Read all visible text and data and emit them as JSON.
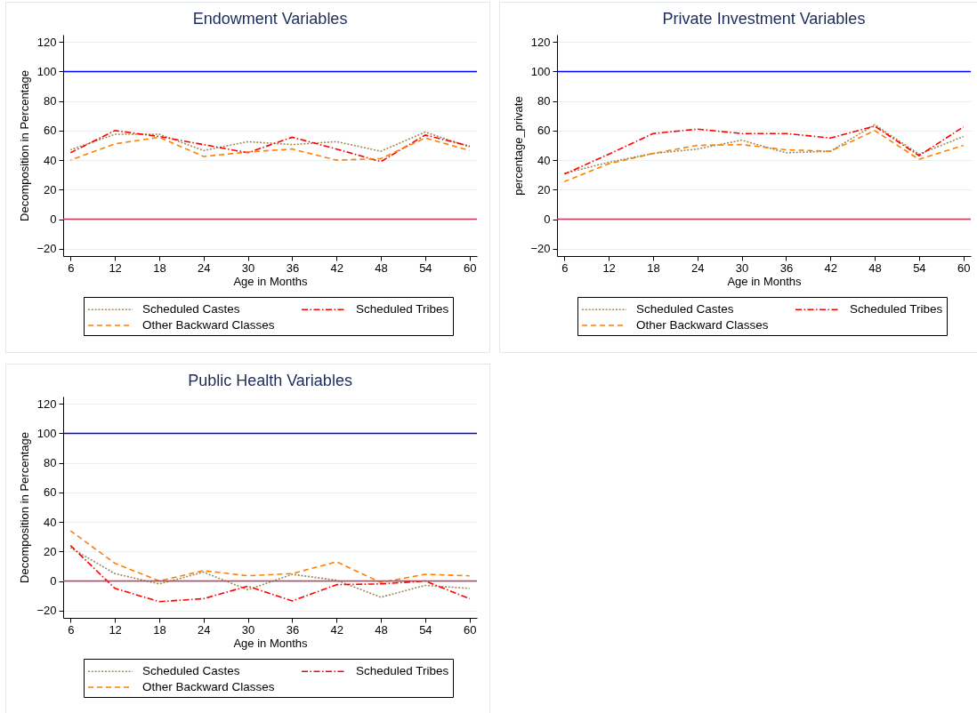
{
  "chart_data": [
    {
      "type": "line",
      "title": "Endowment Variables",
      "xlabel": "Age in Months",
      "ylabel": "Decomposition in Percentage",
      "x": [
        6,
        12,
        18,
        24,
        30,
        36,
        42,
        48,
        54,
        60
      ],
      "xlim": [
        5,
        61
      ],
      "xticks": [
        6,
        12,
        18,
        24,
        30,
        36,
        42,
        48,
        54,
        60
      ],
      "ylim": [
        -25,
        125
      ],
      "yticks": [
        -20,
        0,
        20,
        40,
        60,
        80,
        100,
        120
      ],
      "grid": "y",
      "legend": "bottom",
      "series": [
        {
          "name": "Scheduled Castes",
          "color": "#9c8c5a",
          "line_style": "dotted",
          "values": [
            47,
            57.5,
            57.5,
            46.5,
            52.5,
            50.5,
            52.5,
            46,
            59,
            49
          ]
        },
        {
          "name": "Scheduled Tribes",
          "color": "#ff0000",
          "line_style": "dashdot",
          "values": [
            45,
            60,
            56,
            50.5,
            45,
            55.5,
            47.5,
            39,
            57,
            49.5
          ]
        },
        {
          "name": "Other Backward Classes",
          "color": "#ff8000",
          "line_style": "dashed",
          "values": [
            40,
            51,
            55.5,
            42.5,
            45.5,
            47.5,
            40,
            41,
            55,
            46.5
          ]
        }
      ],
      "ref_lines": [
        {
          "axis": "y",
          "value": 100,
          "color": "#0000ff"
        },
        {
          "axis": "y",
          "value": 0,
          "color": "#c8385a"
        }
      ]
    },
    {
      "type": "line",
      "title": "Private Investment Variables",
      "xlabel": "Age in Months",
      "ylabel": "percentage_private",
      "x": [
        6,
        12,
        18,
        24,
        30,
        36,
        42,
        48,
        54,
        60
      ],
      "xlim": [
        5,
        61
      ],
      "xticks": [
        6,
        12,
        18,
        24,
        30,
        36,
        42,
        48,
        54,
        60
      ],
      "ylim": [
        -25,
        125
      ],
      "yticks": [
        -20,
        0,
        20,
        40,
        60,
        80,
        100,
        120
      ],
      "grid": "y",
      "legend": "bottom",
      "series": [
        {
          "name": "Scheduled Castes",
          "color": "#9c8c5a",
          "line_style": "dotted",
          "values": [
            31,
            38.5,
            44.5,
            47.5,
            53.5,
            45,
            46,
            64,
            44,
            56
          ]
        },
        {
          "name": "Scheduled Tribes",
          "color": "#ff0000",
          "line_style": "dashdot",
          "values": [
            30.5,
            44,
            58,
            61,
            58,
            58,
            55,
            63,
            43,
            62.5
          ]
        },
        {
          "name": "Other Backward Classes",
          "color": "#ff8000",
          "line_style": "dashed",
          "values": [
            25.5,
            37.5,
            44.5,
            50,
            50.5,
            47,
            46,
            60,
            40.5,
            50
          ]
        }
      ],
      "ref_lines": [
        {
          "axis": "y",
          "value": 100,
          "color": "#0000ff"
        },
        {
          "axis": "y",
          "value": 0,
          "color": "#c8385a"
        }
      ]
    },
    {
      "type": "line",
      "title": "Public Health Variables",
      "xlabel": "Age in Months",
      "ylabel": "Decomposition in Percentage",
      "x": [
        6,
        12,
        18,
        24,
        30,
        36,
        42,
        48,
        54,
        60
      ],
      "xlim": [
        5,
        61
      ],
      "xticks": [
        6,
        12,
        18,
        24,
        30,
        36,
        42,
        48,
        54,
        60
      ],
      "ylim": [
        -25,
        125
      ],
      "yticks": [
        -20,
        0,
        20,
        40,
        60,
        80,
        100,
        120
      ],
      "grid": "y",
      "legend": "bottom",
      "series": [
        {
          "name": "Scheduled Castes",
          "color": "#9c8c5a",
          "line_style": "dotted",
          "values": [
            22.5,
            5,
            -2,
            6,
            -6,
            4.5,
            0.5,
            -11,
            -3,
            -5
          ]
        },
        {
          "name": "Scheduled Tribes",
          "color": "#ff0000",
          "line_style": "dashdot",
          "values": [
            24,
            -5,
            -14,
            -12,
            -3.5,
            -13.5,
            -2.5,
            -2,
            0,
            -12
          ]
        },
        {
          "name": "Other Backward Classes",
          "color": "#ff8000",
          "line_style": "dashed",
          "values": [
            34,
            12,
            0,
            7,
            3.5,
            5,
            13,
            -1,
            4.5,
            3.5
          ]
        }
      ],
      "ref_lines": [
        {
          "axis": "y",
          "value": 100,
          "color": "#0000ff"
        },
        {
          "axis": "y",
          "value": 0,
          "color": "#c8385a"
        }
      ]
    }
  ]
}
